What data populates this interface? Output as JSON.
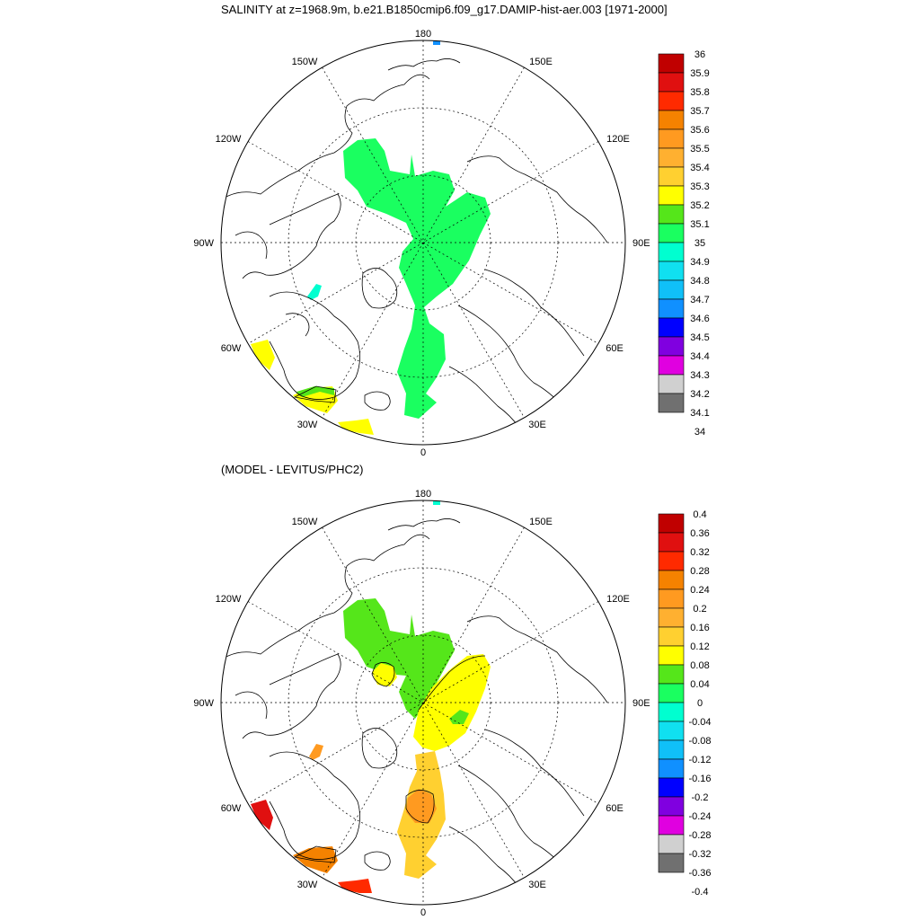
{
  "figure": {
    "title": "SALINITY at z=1968.9m, b.e21.B1850cmip6.f09_g17.DAMIP-hist-aer.003 [1971-2000]",
    "subtitle": "(MODEL - LEVITUS/PHC2)"
  },
  "map_labels": {
    "top": "180",
    "bottom": "0",
    "left": "90W",
    "right": "90E",
    "upper_left_outer": "150W",
    "upper_right_outer": "150E",
    "upper_left_inner": "120W",
    "upper_right_inner": "120E",
    "lower_left_inner": "60W",
    "lower_right_inner": "60E",
    "lower_left_outer": "30W",
    "lower_right_outer": "30E"
  },
  "colorbar_top": {
    "labels": [
      "36",
      "35.9",
      "35.8",
      "35.7",
      "35.6",
      "35.5",
      "35.4",
      "35.3",
      "35.2",
      "35.1",
      "35",
      "34.9",
      "34.8",
      "34.7",
      "34.6",
      "34.5",
      "34.4",
      "34.3",
      "34.2",
      "34.1",
      "34"
    ],
    "colors": [
      "#c00000",
      "#e01010",
      "#ff2a00",
      "#f58200",
      "#ff9a20",
      "#ffb030",
      "#ffd030",
      "#ffff00",
      "#55e61a",
      "#1aff60",
      "#00ffd0",
      "#10e0f0",
      "#10c0f8",
      "#1090ff",
      "#0000ff",
      "#8000e0",
      "#e000e0",
      "#d0d0d0",
      "#707070"
    ]
  },
  "colorbar_bottom": {
    "labels": [
      "0.4",
      "0.36",
      "0.32",
      "0.28",
      "0.24",
      "0.2",
      "0.16",
      "0.12",
      "0.08",
      "0.04",
      "0",
      "-0.04",
      "-0.08",
      "-0.12",
      "-0.16",
      "-0.2",
      "-0.24",
      "-0.28",
      "-0.32",
      "-0.36",
      "-0.4"
    ],
    "colors": [
      "#c00000",
      "#e01010",
      "#ff2a00",
      "#f58200",
      "#ff9a20",
      "#ffb030",
      "#ffd030",
      "#ffff00",
      "#55e61a",
      "#1aff60",
      "#00ffd0",
      "#10e0f0",
      "#10c0f8",
      "#1090ff",
      "#0000ff",
      "#8000e0",
      "#e000e0",
      "#d0d0d0",
      "#707070"
    ]
  },
  "fields_top": {
    "arctic_basin": "#1aff60",
    "labrador_patch": "#ffff00",
    "irminger_patch": "#ffff00",
    "irminger_green": "#55e61a",
    "greenland_sea_patch": "#ffff00",
    "baffin_patch": "#00ffd0",
    "bering_patch": "#1090ff"
  },
  "fields_bottom": {
    "canada_basin": "#55e61a",
    "canada_yellow": "#ffff00",
    "eurasian_basin": "#ffff00",
    "nordic_seas": "#ffd030",
    "nordic_orange": "#ff9a20",
    "labrador_patch": "#e01010",
    "irminger_patch": "#f58200",
    "greenland_sea_patch": "#ff2a00",
    "baffin_patch": "#ff9a20",
    "bering_patch": "#00ffd0"
  }
}
